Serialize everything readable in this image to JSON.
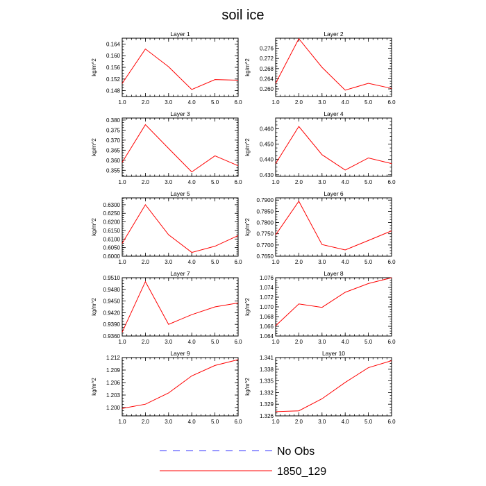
{
  "chart_data": {
    "title": "soil ice",
    "legend": [
      {
        "label": "No Obs",
        "color": "#0000ff",
        "style": "dashed"
      },
      {
        "label": "1850_129",
        "color": "#ff0000",
        "style": "solid"
      }
    ],
    "panels": [
      {
        "type": "line",
        "title": "Layer 1",
        "ylabel": "kg/m^2",
        "x": [
          1.0,
          2.0,
          3.0,
          4.0,
          5.0,
          6.0
        ],
        "xticks": [
          "1.0",
          "2.0",
          "3.0",
          "4.0",
          "5.0",
          "6.0"
        ],
        "xlim": [
          1.0,
          6.0
        ],
        "ylim": [
          0.146,
          0.166
        ],
        "yticks": [
          "0.148",
          "0.152",
          "0.156",
          "0.160",
          "0.164"
        ],
        "ytick_values": [
          0.148,
          0.152,
          0.156,
          0.16,
          0.164
        ],
        "series": [
          {
            "name": "1850_129",
            "values": [
              0.1505,
              0.1623,
              0.1562,
              0.1484,
              0.1518,
              0.1516
            ]
          }
        ]
      },
      {
        "type": "line",
        "title": "Layer 2",
        "ylabel": "kg/m^2",
        "x": [
          1.0,
          2.0,
          3.0,
          4.0,
          5.0,
          6.0
        ],
        "xticks": [
          "1.0",
          "2.0",
          "3.0",
          "4.0",
          "5.0",
          "6.0"
        ],
        "xlim": [
          1.0,
          6.0
        ],
        "ylim": [
          0.257,
          0.28
        ],
        "yticks": [
          "0.260",
          "0.264",
          "0.268",
          "0.272",
          "0.276"
        ],
        "ytick_values": [
          0.26,
          0.264,
          0.268,
          0.272,
          0.276
        ],
        "series": [
          {
            "name": "1850_129",
            "values": [
              0.2622,
              0.2798,
              0.2685,
              0.2595,
              0.2622,
              0.2602
            ]
          }
        ]
      },
      {
        "type": "line",
        "title": "Layer 3",
        "ylabel": "kg/m^2",
        "x": [
          1.0,
          2.0,
          3.0,
          4.0,
          5.0,
          6.0
        ],
        "xticks": [
          "1.0",
          "2.0",
          "3.0",
          "4.0",
          "5.0",
          "6.0"
        ],
        "xlim": [
          1.0,
          6.0
        ],
        "ylim": [
          0.352,
          0.381
        ],
        "yticks": [
          "0.355",
          "0.360",
          "0.365",
          "0.370",
          "0.375",
          "0.380"
        ],
        "ytick_values": [
          0.355,
          0.36,
          0.365,
          0.37,
          0.375,
          0.38
        ],
        "series": [
          {
            "name": "1850_129",
            "values": [
              0.359,
              0.3777,
              0.3659,
              0.3542,
              0.3622,
              0.3573
            ]
          }
        ]
      },
      {
        "type": "line",
        "title": "Layer 4",
        "ylabel": "kg/m^2",
        "x": [
          1.0,
          2.0,
          3.0,
          4.0,
          5.0,
          6.0
        ],
        "xticks": [
          "1.0",
          "2.0",
          "3.0",
          "4.0",
          "5.0",
          "6.0"
        ],
        "xlim": [
          1.0,
          6.0
        ],
        "ylim": [
          0.429,
          0.467
        ],
        "yticks": [
          "0.430",
          "0.440",
          "0.450",
          "0.460"
        ],
        "ytick_values": [
          0.43,
          0.44,
          0.45,
          0.46
        ],
        "series": [
          {
            "name": "1850_129",
            "values": [
              0.4373,
              0.4615,
              0.4431,
              0.4331,
              0.441,
              0.4373
            ]
          }
        ]
      },
      {
        "type": "line",
        "title": "Layer 5",
        "ylabel": "kg/m^2",
        "x": [
          1.0,
          2.0,
          3.0,
          4.0,
          5.0,
          6.0
        ],
        "xticks": [
          "1.0",
          "2.0",
          "3.0",
          "4.0",
          "5.0",
          "6.0"
        ],
        "xlim": [
          1.0,
          6.0
        ],
        "ylim": [
          0.6,
          0.634
        ],
        "yticks": [
          "0.6000",
          "0.6050",
          "0.6100",
          "0.6150",
          "0.6200",
          "0.6250",
          "0.6300"
        ],
        "ytick_values": [
          0.6,
          0.605,
          0.61,
          0.615,
          0.62,
          0.625,
          0.63
        ],
        "series": [
          {
            "name": "1850_129",
            "values": [
              0.6075,
              0.63,
              0.6125,
              0.6022,
              0.6058,
              0.612
            ]
          }
        ]
      },
      {
        "type": "line",
        "title": "Layer 6",
        "ylabel": "kg/m^2",
        "x": [
          1.0,
          2.0,
          3.0,
          4.0,
          5.0,
          6.0
        ],
        "xticks": [
          "1.0",
          "2.0",
          "3.0",
          "4.0",
          "5.0",
          "6.0"
        ],
        "xlim": [
          1.0,
          6.0
        ],
        "ylim": [
          0.765,
          0.791
        ],
        "yticks": [
          "0.7650",
          "0.7700",
          "0.7750",
          "0.7800",
          "0.7850",
          "0.7900"
        ],
        "ytick_values": [
          0.765,
          0.77,
          0.775,
          0.78,
          0.785,
          0.79
        ],
        "series": [
          {
            "name": "1850_129",
            "values": [
              0.7745,
              0.7895,
              0.7702,
              0.7678,
              0.772,
              0.7763
            ]
          }
        ]
      },
      {
        "type": "line",
        "title": "Layer 7",
        "ylabel": "kg/m^2",
        "x": [
          1.0,
          2.0,
          3.0,
          4.0,
          5.0,
          6.0
        ],
        "xticks": [
          "1.0",
          "2.0",
          "3.0",
          "4.0",
          "5.0",
          "6.0"
        ],
        "xlim": [
          1.0,
          6.0
        ],
        "ylim": [
          0.936,
          0.951
        ],
        "yticks": [
          "0.9360",
          "0.9390",
          "0.9420",
          "0.9450",
          "0.9480",
          "0.9510"
        ],
        "ytick_values": [
          0.936,
          0.939,
          0.942,
          0.945,
          0.948,
          0.951
        ],
        "series": [
          {
            "name": "1850_129",
            "values": [
              0.937,
              0.95,
              0.939,
              0.9415,
              0.9435,
              0.9445
            ]
          }
        ]
      },
      {
        "type": "line",
        "title": "Layer 8",
        "ylabel": "kg/m^2",
        "x": [
          1.0,
          2.0,
          3.0,
          4.0,
          5.0,
          6.0
        ],
        "xticks": [
          "1.0",
          "2.0",
          "3.0",
          "4.0",
          "5.0",
          "6.0"
        ],
        "xlim": [
          1.0,
          6.0
        ],
        "ylim": [
          1.064,
          1.076
        ],
        "yticks": [
          "1.064",
          "1.066",
          "1.068",
          "1.070",
          "1.072",
          "1.074",
          "1.076"
        ],
        "ytick_values": [
          1.064,
          1.066,
          1.068,
          1.07,
          1.072,
          1.074,
          1.076
        ],
        "series": [
          {
            "name": "1850_129",
            "values": [
              1.0661,
              1.0706,
              1.0699,
              1.073,
              1.0748,
              1.076
            ]
          }
        ]
      },
      {
        "type": "line",
        "title": "Layer 9",
        "ylabel": "kg/m^2",
        "x": [
          1.0,
          2.0,
          3.0,
          4.0,
          5.0,
          6.0
        ],
        "xticks": [
          "1.0",
          "2.0",
          "3.0",
          "4.0",
          "5.0",
          "6.0"
        ],
        "xlim": [
          1.0,
          6.0
        ],
        "ylim": [
          1.198,
          1.212
        ],
        "yticks": [
          "1.200",
          "1.203",
          "1.206",
          "1.209",
          "1.212"
        ],
        "ytick_values": [
          1.2,
          1.203,
          1.206,
          1.209,
          1.212
        ],
        "series": [
          {
            "name": "1850_129",
            "values": [
              1.1998,
              1.2008,
              1.2035,
              1.2076,
              1.2101,
              1.2115
            ]
          }
        ]
      },
      {
        "type": "line",
        "title": "Layer 10",
        "ylabel": "kg/m^2",
        "x": [
          1.0,
          2.0,
          3.0,
          4.0,
          5.0,
          6.0
        ],
        "xticks": [
          "1.0",
          "2.0",
          "3.0",
          "4.0",
          "5.0",
          "6.0"
        ],
        "xlim": [
          1.0,
          6.0
        ],
        "ylim": [
          1.326,
          1.341
        ],
        "yticks": [
          "1.326",
          "1.329",
          "1.332",
          "1.335",
          "1.338",
          "1.341"
        ],
        "ytick_values": [
          1.326,
          1.329,
          1.332,
          1.335,
          1.338,
          1.341
        ],
        "series": [
          {
            "name": "1850_129",
            "values": [
              1.3271,
              1.3273,
              1.3304,
              1.3346,
              1.3384,
              1.3402
            ]
          }
        ]
      }
    ]
  }
}
